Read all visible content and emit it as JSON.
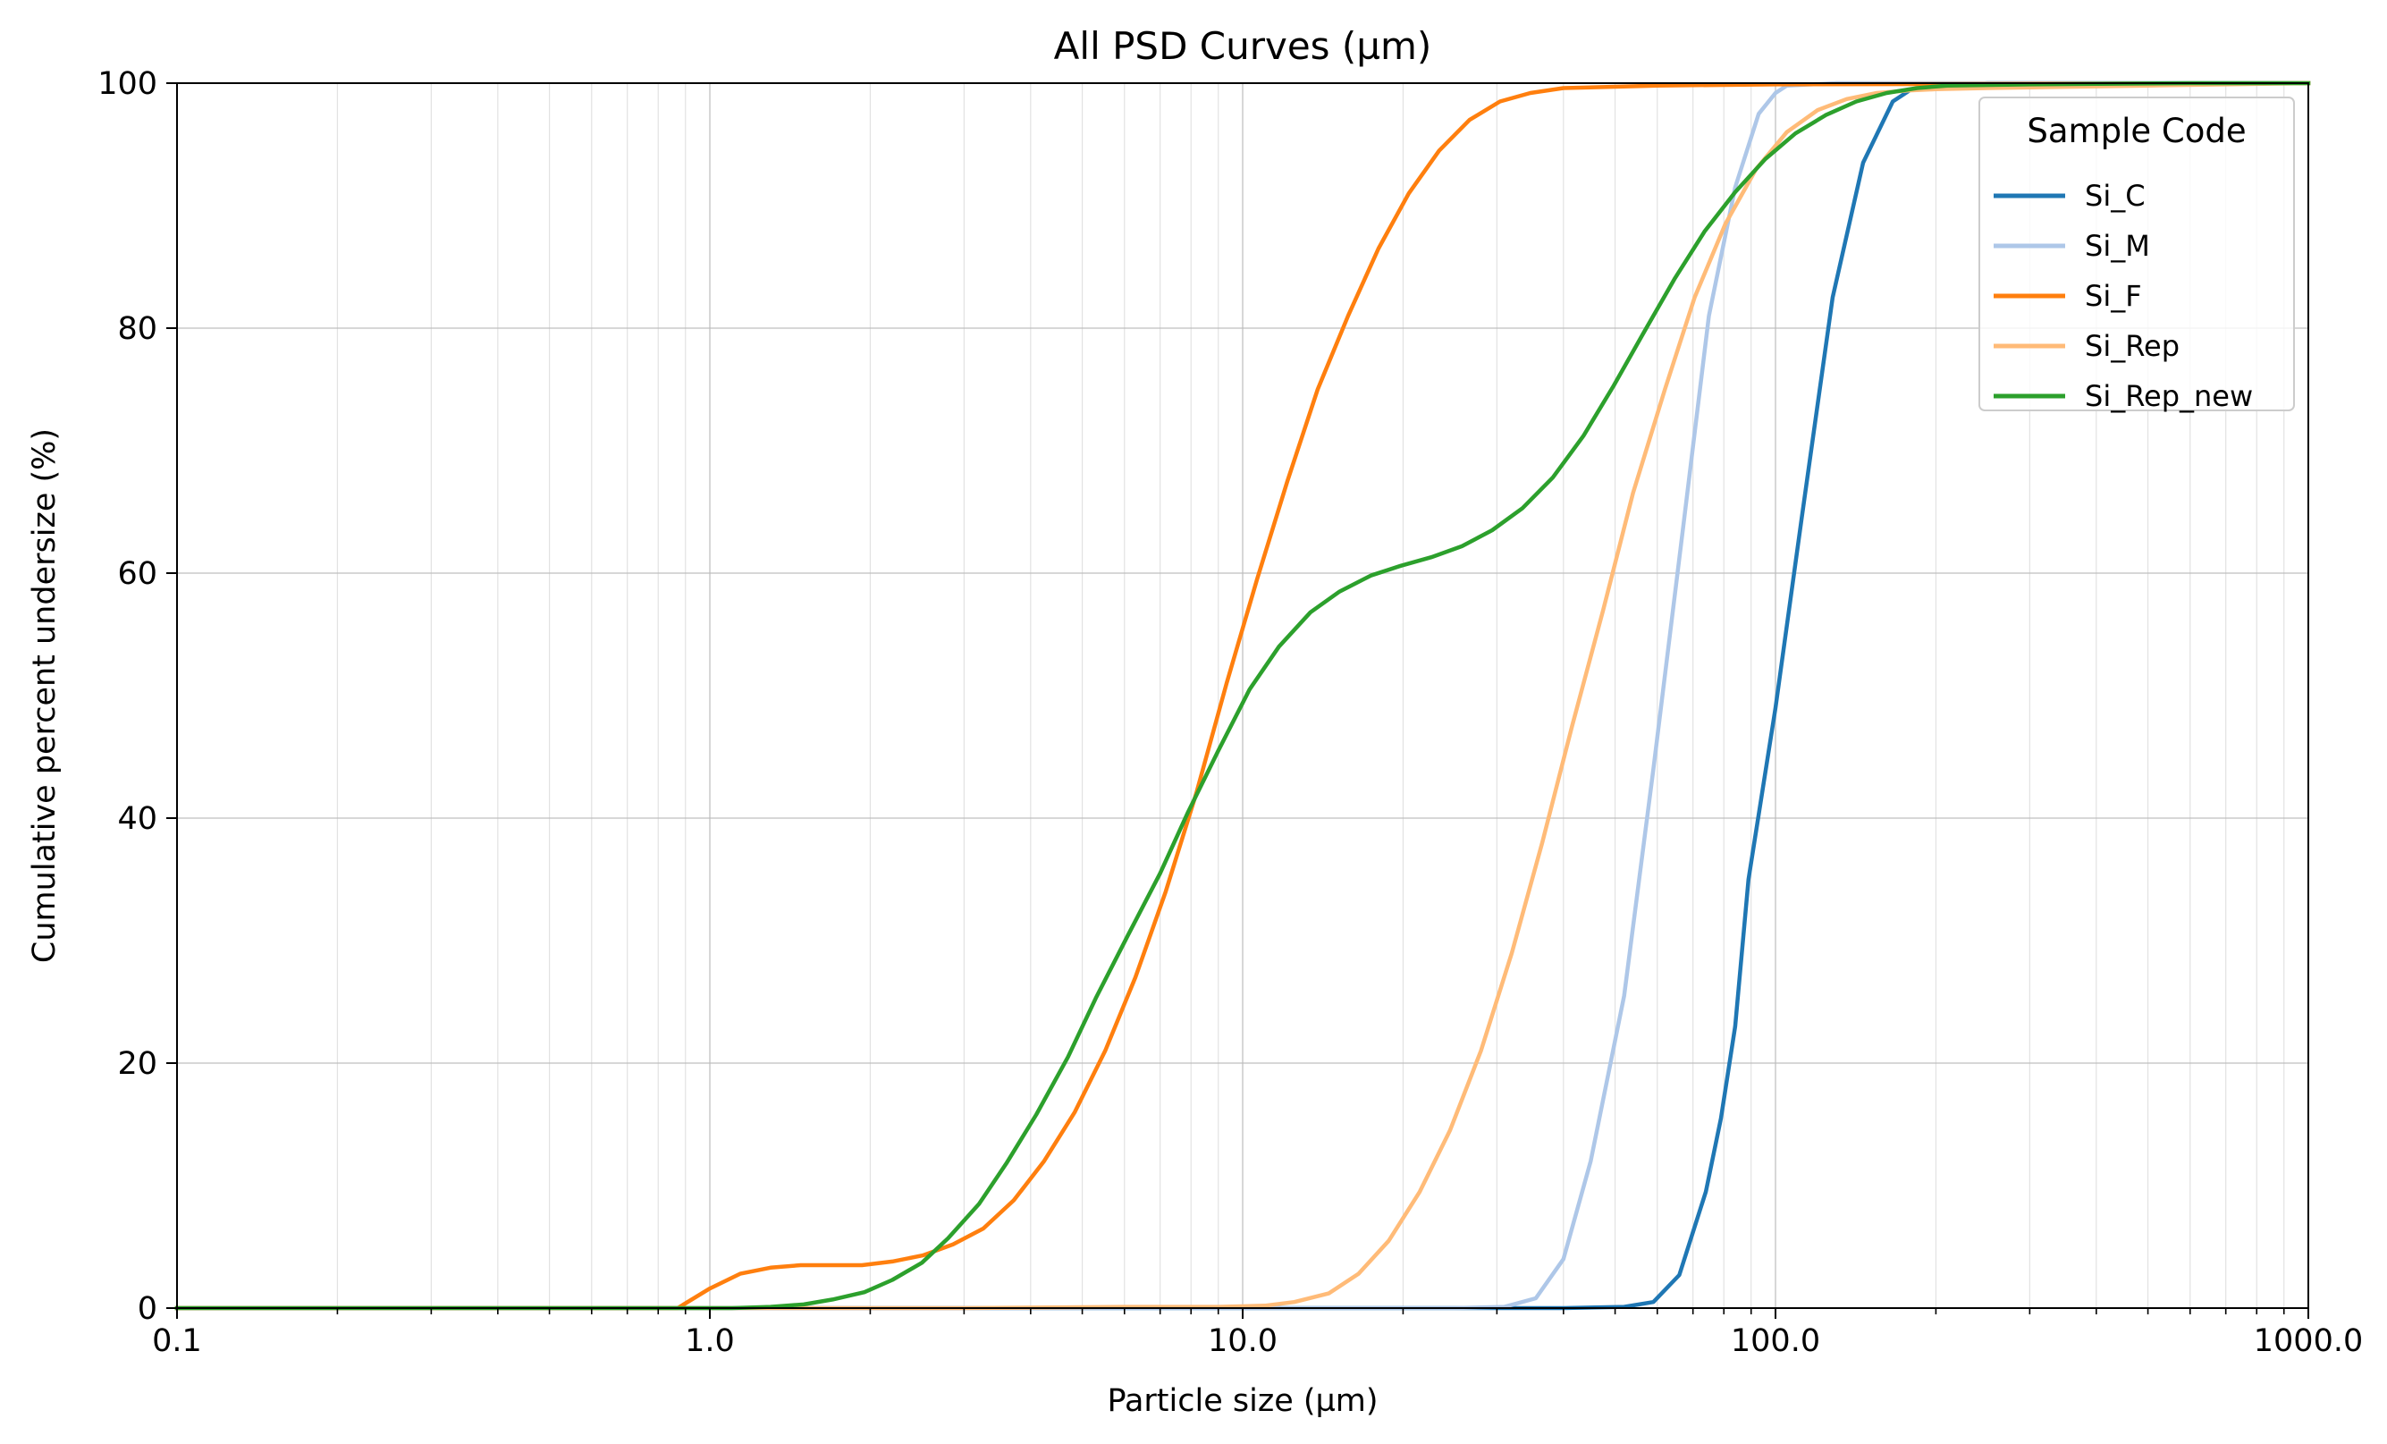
{
  "chart_data": {
    "type": "line",
    "title": "All PSD Curves (µm)",
    "xlabel": "Particle size (µm)",
    "ylabel": "Cumulative percent undersize (%)",
    "xscale": "log",
    "xlim": [
      0.1,
      1000.0
    ],
    "ylim": [
      0,
      100
    ],
    "xticks": [
      0.1,
      1.0,
      10.0,
      100.0,
      1000.0
    ],
    "xtick_labels": [
      "0.1",
      "1.0",
      "10.0",
      "100.0",
      "1000.0"
    ],
    "yticks": [
      0,
      20,
      40,
      60,
      80,
      100
    ],
    "ytick_labels": [
      "0",
      "20",
      "40",
      "60",
      "80",
      "100"
    ],
    "grid": true,
    "legend": {
      "title": "Sample Code",
      "position": "upper right"
    },
    "series": [
      {
        "name": "Si_C",
        "color": "#1f77b4",
        "x": [
          0.1,
          10,
          40,
          52,
          59,
          66,
          74,
          79,
          84,
          89,
          100,
          112,
          128,
          146,
          166,
          180,
          250,
          1000
        ],
        "y": [
          0,
          0,
          0,
          0.1,
          0.5,
          2.7,
          9.5,
          15.5,
          23,
          35,
          49,
          64.5,
          82.5,
          93.5,
          98.5,
          99.5,
          100,
          100
        ]
      },
      {
        "name": "Si_M",
        "color": "#aec7e8",
        "x": [
          0.1,
          10,
          25,
          31,
          35.5,
          40,
          45,
          52,
          59,
          67,
          75,
          84,
          93,
          100,
          105,
          130,
          1000
        ],
        "y": [
          0,
          0,
          0,
          0.1,
          0.8,
          4,
          12,
          25.5,
          44,
          63.5,
          81,
          91.5,
          97.5,
          99.2,
          99.8,
          100,
          100
        ]
      },
      {
        "name": "Si_F",
        "color": "#ff7f0e",
        "x": [
          0.1,
          0.87,
          1.0,
          1.14,
          1.3,
          1.48,
          1.69,
          1.93,
          2.2,
          2.51,
          2.86,
          3.26,
          3.72,
          4.24,
          4.84,
          5.52,
          6.29,
          7.17,
          8.18,
          9.33,
          10.64,
          12.13,
          13.83,
          15.77,
          17.98,
          20.5,
          23.38,
          26.66,
          30.4,
          34.67,
          40,
          60,
          100,
          1000
        ],
        "y": [
          0,
          0,
          1.6,
          2.8,
          3.3,
          3.5,
          3.5,
          3.5,
          3.8,
          4.3,
          5.2,
          6.5,
          8.8,
          12,
          16,
          21,
          27,
          34,
          42,
          51,
          59.5,
          67.5,
          75,
          81,
          86.5,
          91,
          94.5,
          97,
          98.5,
          99.2,
          99.6,
          99.8,
          99.9,
          100
        ]
      },
      {
        "name": "Si_Rep",
        "color": "#ffbb78",
        "x": [
          0.1,
          3,
          6,
          9,
          11,
          12.5,
          14.5,
          16.5,
          18.8,
          21.5,
          24.5,
          28,
          32,
          36.5,
          41.5,
          47.5,
          54,
          62,
          70.5,
          80.5,
          92,
          105,
          120,
          136,
          155,
          177,
          200,
          250,
          500,
          1000
        ],
        "y": [
          0,
          0,
          0.1,
          0.1,
          0.2,
          0.5,
          1.2,
          2.8,
          5.5,
          9.5,
          14.5,
          21,
          29,
          38,
          47.5,
          57,
          66.5,
          75,
          82.5,
          88.5,
          93,
          96,
          97.8,
          98.7,
          99.2,
          99.4,
          99.5,
          99.6,
          99.8,
          100
        ]
      },
      {
        "name": "Si_Rep_new",
        "color": "#2ca02c",
        "x": [
          0.1,
          1.1,
          1.3,
          1.5,
          1.7,
          1.95,
          2.2,
          2.5,
          2.8,
          3.2,
          3.6,
          4.1,
          4.7,
          5.3,
          6.1,
          7.0,
          7.9,
          9.0,
          10.3,
          11.7,
          13.4,
          15.2,
          17.4,
          19.8,
          22.6,
          25.8,
          29.4,
          33.5,
          38.2,
          43.6,
          49.7,
          56.7,
          64.6,
          73.6,
          84,
          95.7,
          109,
          124.4,
          141.8,
          161.7,
          184.4,
          210.2,
          300,
          600,
          1000
        ],
        "y": [
          0,
          0,
          0.1,
          0.3,
          0.7,
          1.3,
          2.3,
          3.7,
          5.7,
          8.5,
          11.8,
          15.8,
          20.5,
          25.3,
          30.5,
          35.5,
          40.5,
          45.5,
          50.5,
          54,
          56.8,
          58.5,
          59.8,
          60.6,
          61.3,
          62.2,
          63.5,
          65.3,
          67.8,
          71.2,
          75.3,
          79.7,
          84,
          87.9,
          91.1,
          93.8,
          95.9,
          97.4,
          98.5,
          99.2,
          99.6,
          99.8,
          99.9,
          100,
          100
        ]
      }
    ]
  }
}
